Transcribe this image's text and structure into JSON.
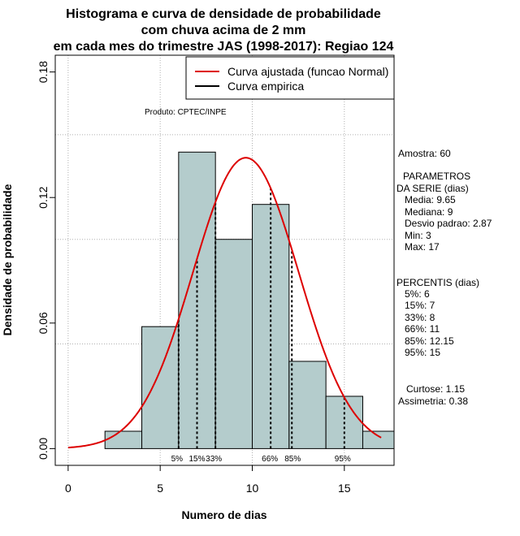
{
  "chart_data": {
    "type": "histogram",
    "title": [
      "Histograma e curva de densidade de probabilidade",
      "com chuva acima de 2 mm",
      "em cada mes do trimestre JAS (1998-2017): Regiao 124"
    ],
    "xlabel": "Numero de dias",
    "ylabel": "Densidade de probabilidade",
    "xlim": [
      -0.7,
      17.7
    ],
    "ylim": [
      -0.008,
      0.188
    ],
    "x_ticks": [
      0,
      5,
      10,
      15
    ],
    "y_ticks": [
      0.0,
      0.06,
      0.12,
      0.18
    ],
    "y_tick_labels": [
      "0.00",
      "0.06",
      "0.12",
      "0.18"
    ],
    "grid_y": [
      0.05,
      0.1,
      0.15
    ],
    "bins": [
      {
        "x0": 2,
        "x1": 4,
        "density": 0.0083
      },
      {
        "x0": 4,
        "x1": 6,
        "density": 0.0583
      },
      {
        "x0": 6,
        "x1": 8,
        "density": 0.1417
      },
      {
        "x0": 8,
        "x1": 10,
        "density": 0.1
      },
      {
        "x0": 10,
        "x1": 12,
        "density": 0.1167
      },
      {
        "x0": 12,
        "x1": 14,
        "density": 0.0417
      },
      {
        "x0": 14,
        "x1": 16,
        "density": 0.025
      },
      {
        "x0": 16,
        "x1": 18,
        "density": 0.0083
      }
    ],
    "bar_color": "#b4cccc",
    "curve_color": "#dd0000",
    "normal_fit": {
      "mean": 9.65,
      "sd": 2.87,
      "x_from": 0,
      "x_to": 17
    },
    "percentile_lines": [
      {
        "label": "5%",
        "x": 6
      },
      {
        "label": "15%",
        "x": 7
      },
      {
        "label": "33%",
        "x": 8
      },
      {
        "label": "66%",
        "x": 11
      },
      {
        "label": "85%",
        "x": 12.15
      },
      {
        "label": "95%",
        "x": 15
      }
    ],
    "legend": [
      {
        "label": "Curva ajustada (funcao Normal)",
        "color": "#dd0000"
      },
      {
        "label": "Curva empirica",
        "color": "#000000"
      }
    ],
    "credit": "Produto: CPTEC/INPE"
  },
  "side_panel": {
    "sample": "Amostra: 60",
    "params_title": "PARAMETROS",
    "params_subtitle": "DA SERIE (dias)",
    "params": [
      "Media: 9.65",
      "Mediana: 9",
      "Desvio padrao: 2.87",
      "Min: 3",
      "Max: 17"
    ],
    "percentis_title": "PERCENTIS (dias)",
    "percentis": [
      "5%: 6",
      "15%: 7",
      "33%: 8",
      "66%: 11",
      "85%: 12.15",
      "95%: 15"
    ],
    "curtose": "Curtose: 1.15",
    "assimetria": "Assimetria: 0.38"
  }
}
